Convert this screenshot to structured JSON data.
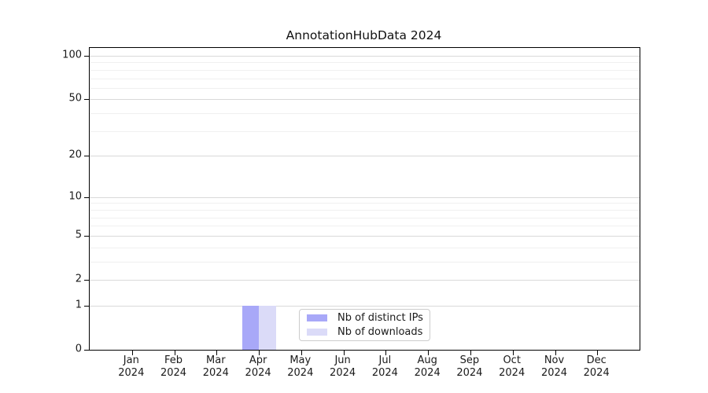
{
  "chart_data": {
    "type": "bar",
    "title": "AnnotationHubData 2024",
    "categories": [
      "Jan",
      "Feb",
      "Mar",
      "Apr",
      "May",
      "Jun",
      "Jul",
      "Aug",
      "Sep",
      "Oct",
      "Nov",
      "Dec"
    ],
    "category_year_line": "2024",
    "series": [
      {
        "name": "Nb of distinct IPs",
        "color": "#a8a8f8",
        "values": [
          0,
          0,
          0,
          1,
          0,
          0,
          0,
          0,
          0,
          0,
          0,
          0
        ]
      },
      {
        "name": "Nb of downloads",
        "color": "#dbdbf8",
        "values": [
          0,
          0,
          0,
          1,
          0,
          0,
          0,
          0,
          0,
          0,
          0,
          0
        ]
      }
    ],
    "y_scale": "log1p",
    "ylim": [
      0,
      113
    ],
    "y_major_ticks": [
      0,
      1,
      2,
      5,
      10,
      20,
      50,
      100
    ],
    "y_minor_ticks": [
      3,
      4,
      6,
      7,
      8,
      9,
      30,
      40,
      60,
      70,
      80,
      90
    ],
    "xlabel": "",
    "ylabel": "",
    "grid": "horizontal-major-and-minor",
    "legend": {
      "position": "inside-bottom-center",
      "entries": [
        "Nb of distinct IPs",
        "Nb of downloads"
      ]
    },
    "colors": {
      "major_grid": "#d9d9d9",
      "minor_grid": "#f0f0f0",
      "spine": "#000000",
      "text": "#1a1a1a"
    }
  }
}
